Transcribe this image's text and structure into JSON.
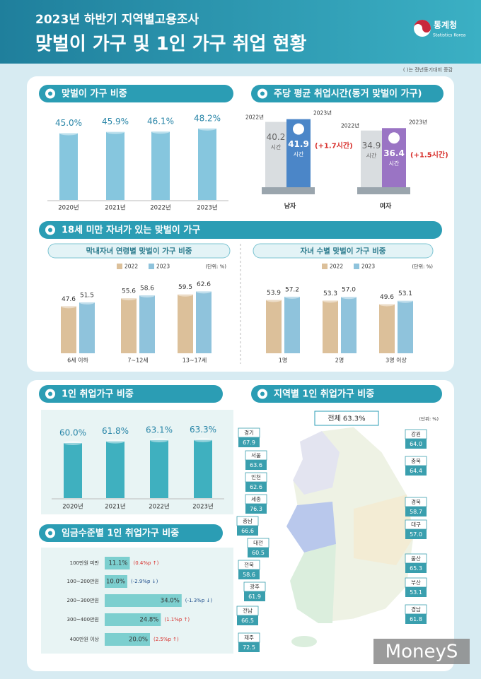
{
  "header": {
    "subtitle": "2023년 하반기 지역별고용조사",
    "title": "맞벌이 가구 및 1인 가구 취업 현황",
    "logo": "통계청",
    "logo_en": "Statistics Korea"
  },
  "note": "( )는 전년동기대비 증감",
  "chart_data": [
    {
      "type": "bar",
      "title": "맞벌이 가구 비중",
      "categories": [
        "2020년",
        "2021년",
        "2022년",
        "2023년"
      ],
      "values": [
        45.0,
        45.9,
        46.1,
        48.2
      ],
      "value_labels": [
        "45.0%",
        "45.9%",
        "46.1%",
        "48.2%"
      ],
      "color": "#86c6de"
    },
    {
      "type": "paired-bar",
      "title": "주당 평균 취업시간(동거 맞벌이 가구)",
      "categories": [
        "남자",
        "여자"
      ],
      "unit": "시간",
      "series": [
        {
          "name": "2022년",
          "color": "#d9dde0",
          "values": [
            40.2,
            34.9
          ]
        },
        {
          "name": "2023년",
          "color": "#4b86c8",
          "colors": [
            "#4b86c8",
            "#9a74c4"
          ],
          "values": [
            41.9,
            36.4
          ]
        }
      ],
      "changes": [
        "(+1.7시간)",
        "(+1.5시간)"
      ]
    },
    {
      "type": "grouped-bar",
      "title": "18세 미만 자녀가 있는 맞벌이 가구",
      "subtitle": "막내자녀 연령별 맞벌이 가구 비중",
      "unit": "(단위: %)",
      "categories": [
        "6세 이하",
        "7~12세",
        "13~17세"
      ],
      "series": [
        {
          "name": "2022",
          "color": "#dcc09a",
          "values": [
            47.6,
            55.6,
            59.5
          ],
          "value_labels": [
            "47.6",
            "55.6",
            "59.5"
          ]
        },
        {
          "name": "2023",
          "color": "#8fc3dc",
          "values": [
            51.5,
            58.6,
            62.6
          ],
          "value_labels": [
            "51.5",
            "58.6",
            "62.6"
          ]
        }
      ]
    },
    {
      "type": "grouped-bar",
      "subtitle": "자녀 수별 맞벌이 가구 비중",
      "unit": "(단위: %)",
      "categories": [
        "1명",
        "2명",
        "3명 이상"
      ],
      "series": [
        {
          "name": "2022",
          "color": "#dcc09a",
          "values": [
            53.9,
            53.3,
            49.6
          ],
          "value_labels": [
            "53.9",
            "53.3",
            "49.6"
          ]
        },
        {
          "name": "2023",
          "color": "#8fc3dc",
          "values": [
            57.2,
            57.0,
            53.1
          ],
          "value_labels": [
            "57.2",
            "57.0",
            "53.1"
          ]
        }
      ]
    },
    {
      "type": "bar",
      "title": "1인 취업가구 비중",
      "categories": [
        "2020년",
        "2021년",
        "2022년",
        "2023년"
      ],
      "values": [
        60.0,
        61.8,
        63.1,
        63.3
      ],
      "value_labels": [
        "60.0%",
        "61.8%",
        "63.1%",
        "63.3%"
      ],
      "color": "#3fb0bf"
    },
    {
      "type": "hbar",
      "title": "임금수준별 1인 취업가구 비중",
      "categories": [
        "100만원 미만",
        "100~200만원",
        "200~300만원",
        "300~400만원",
        "400만원 이상"
      ],
      "values": [
        11.1,
        10.0,
        34.0,
        24.8,
        20.0
      ],
      "value_labels": [
        "11.1%",
        "10.0%",
        "34.0%",
        "24.8%",
        "20.0%"
      ],
      "changes": [
        "(0.4%p ↑)",
        "(-2.9%p ↓)",
        "(-1.3%p ↓)",
        "(1.1%p ↑)",
        "(2.5%p ↑)"
      ],
      "color": "#7ccfcf"
    },
    {
      "type": "map",
      "title": "지역별 1인 취업가구 비중",
      "total": "전체 63.3%",
      "unit": "(단위: %)",
      "categories": [
        "경기",
        "서울",
        "인천",
        "세종",
        "충남",
        "대전",
        "전북",
        "광주",
        "전남",
        "제주",
        "강원",
        "충북",
        "경북",
        "대구",
        "울산",
        "부산",
        "경남"
      ],
      "values": [
        67.9,
        63.6,
        62.6,
        76.3,
        66.6,
        60.5,
        58.6,
        61.9,
        66.5,
        72.5,
        64.0,
        64.4,
        58.7,
        57.0,
        65.3,
        53.1,
        61.8
      ],
      "value_labels": [
        "67.9",
        "63.6",
        "62.6",
        "76.3",
        "66.6",
        "60.5",
        "58.6",
        "61.9",
        "66.5",
        "72.5",
        "64.0",
        "64.4",
        "58.7",
        "57.0",
        "65.3",
        "53.1",
        "61.8"
      ],
      "color": "#3a9fae"
    }
  ],
  "watermark": "MoneyS"
}
